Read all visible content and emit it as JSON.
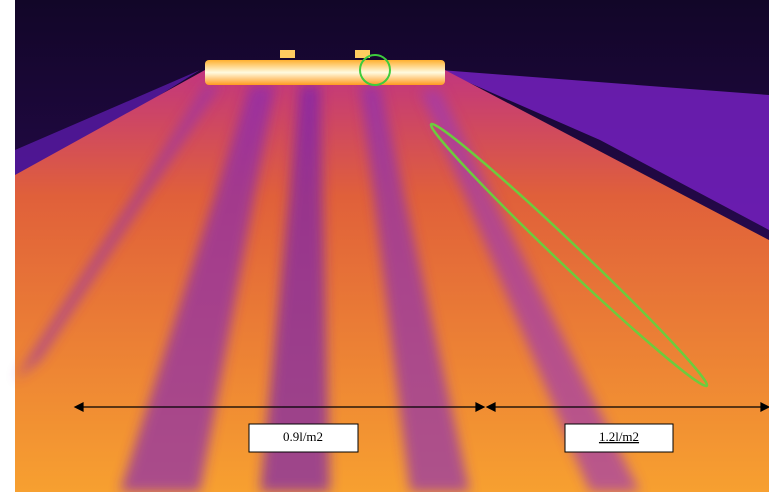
{
  "annotations": {
    "left_label": "0.9l/m2",
    "right_label": "1.2l/m2"
  }
}
